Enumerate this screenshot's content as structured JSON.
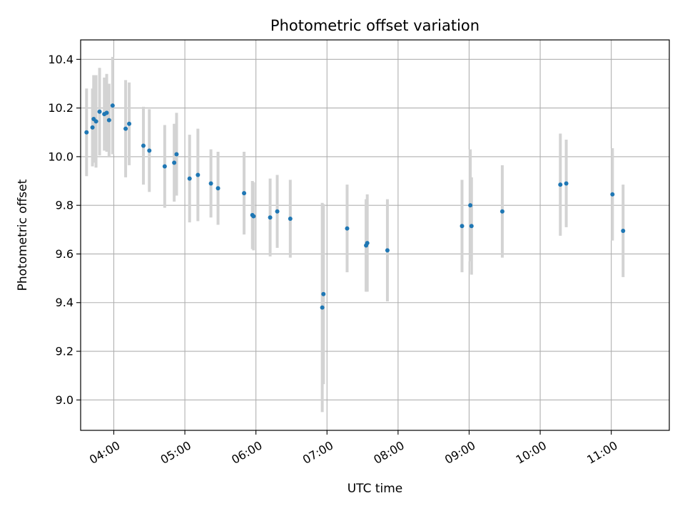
{
  "chart_data": {
    "type": "scatter",
    "title": "Photometric offset variation",
    "xlabel": "UTC time",
    "ylabel": "Photometric offset",
    "x_ticks": [
      "04:00",
      "05:00",
      "06:00",
      "07:00",
      "08:00",
      "09:00",
      "10:00",
      "11:00"
    ],
    "y_ticks": [
      "9.0",
      "9.2",
      "9.4",
      "9.6",
      "9.8",
      "10.0",
      "10.2",
      "10.4"
    ],
    "xlim": [
      "03:32",
      "11:49"
    ],
    "ylim": [
      8.875,
      10.48
    ],
    "grid": true,
    "colors": {
      "points": "#1f77b4",
      "errorbars": "#d3d3d3",
      "grid": "#b0b0b0"
    },
    "points": [
      {
        "t": "03:37",
        "y": 10.1,
        "err": 0.18
      },
      {
        "t": "03:42",
        "y": 10.12,
        "err": 0.16
      },
      {
        "t": "03:43",
        "y": 10.155,
        "err": 0.18
      },
      {
        "t": "03:45",
        "y": 10.145,
        "err": 0.19
      },
      {
        "t": "03:48",
        "y": 10.185,
        "err": 0.18
      },
      {
        "t": "03:52",
        "y": 10.175,
        "err": 0.15
      },
      {
        "t": "03:54",
        "y": 10.18,
        "err": 0.16
      },
      {
        "t": "03:56",
        "y": 10.15,
        "err": 0.15
      },
      {
        "t": "03:59",
        "y": 10.21,
        "err": 0.2
      },
      {
        "t": "04:10",
        "y": 10.115,
        "err": 0.2
      },
      {
        "t": "04:13",
        "y": 10.135,
        "err": 0.17
      },
      {
        "t": "04:25",
        "y": 10.045,
        "err": 0.16
      },
      {
        "t": "04:30",
        "y": 10.025,
        "err": 0.17
      },
      {
        "t": "04:43",
        "y": 9.96,
        "err": 0.17
      },
      {
        "t": "04:51",
        "y": 9.975,
        "err": 0.16
      },
      {
        "t": "04:53",
        "y": 10.01,
        "err": 0.17
      },
      {
        "t": "05:04",
        "y": 9.91,
        "err": 0.18
      },
      {
        "t": "05:11",
        "y": 9.925,
        "err": 0.19
      },
      {
        "t": "05:22",
        "y": 9.89,
        "err": 0.14
      },
      {
        "t": "05:28",
        "y": 9.87,
        "err": 0.15
      },
      {
        "t": "05:50",
        "y": 9.85,
        "err": 0.17
      },
      {
        "t": "05:57",
        "y": 9.76,
        "err": 0.14
      },
      {
        "t": "05:58",
        "y": 9.755,
        "err": 0.14
      },
      {
        "t": "06:12",
        "y": 9.75,
        "err": 0.16
      },
      {
        "t": "06:18",
        "y": 9.775,
        "err": 0.15
      },
      {
        "t": "06:29",
        "y": 9.745,
        "err": 0.16
      },
      {
        "t": "06:56",
        "y": 9.38,
        "err": 0.43
      },
      {
        "t": "06:57",
        "y": 9.435,
        "err": 0.37
      },
      {
        "t": "07:17",
        "y": 9.705,
        "err": 0.18
      },
      {
        "t": "07:33",
        "y": 9.635,
        "err": 0.19
      },
      {
        "t": "07:34",
        "y": 9.645,
        "err": 0.2
      },
      {
        "t": "07:51",
        "y": 9.615,
        "err": 0.21
      },
      {
        "t": "08:54",
        "y": 9.715,
        "err": 0.19
      },
      {
        "t": "09:01",
        "y": 9.8,
        "err": 0.23
      },
      {
        "t": "09:02",
        "y": 9.715,
        "err": 0.2
      },
      {
        "t": "09:28",
        "y": 9.775,
        "err": 0.19
      },
      {
        "t": "10:17",
        "y": 9.885,
        "err": 0.21
      },
      {
        "t": "10:22",
        "y": 9.89,
        "err": 0.18
      },
      {
        "t": "11:01",
        "y": 9.845,
        "err": 0.19
      },
      {
        "t": "11:10",
        "y": 9.695,
        "err": 0.19
      }
    ]
  }
}
